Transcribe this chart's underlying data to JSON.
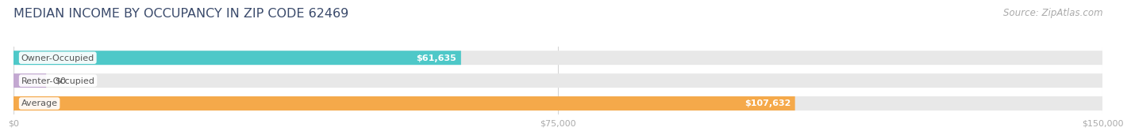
{
  "title": "MEDIAN INCOME BY OCCUPANCY IN ZIP CODE 62469",
  "source": "Source: ZipAtlas.com",
  "categories": [
    "Owner-Occupied",
    "Renter-Occupied",
    "Average"
  ],
  "values": [
    61635,
    0,
    107632
  ],
  "bar_colors": [
    "#4EC8C8",
    "#C3A8D1",
    "#F5A94A"
  ],
  "bar_bg_color": "#E8E8E8",
  "label_texts": [
    "$61,635",
    "$0",
    "$107,632"
  ],
  "x_ticks": [
    0,
    75000,
    150000
  ],
  "x_tick_labels": [
    "$0",
    "$75,000",
    "$150,000"
  ],
  "xlim": [
    0,
    150000
  ],
  "title_fontsize": 11.5,
  "source_fontsize": 8.5,
  "label_fontsize": 8,
  "cat_fontsize": 8,
  "tick_fontsize": 8,
  "bar_height": 0.62,
  "fig_width": 14.06,
  "fig_height": 1.97,
  "background_color": "#FFFFFF",
  "title_color": "#3A4A6B",
  "source_color": "#AAAAAA",
  "tick_color": "#AAAAAA",
  "grid_color": "#D5D5D5",
  "cat_label_color": "#555555",
  "value_label_color_dark": "#555555",
  "value_label_color_white": "#FFFFFF"
}
